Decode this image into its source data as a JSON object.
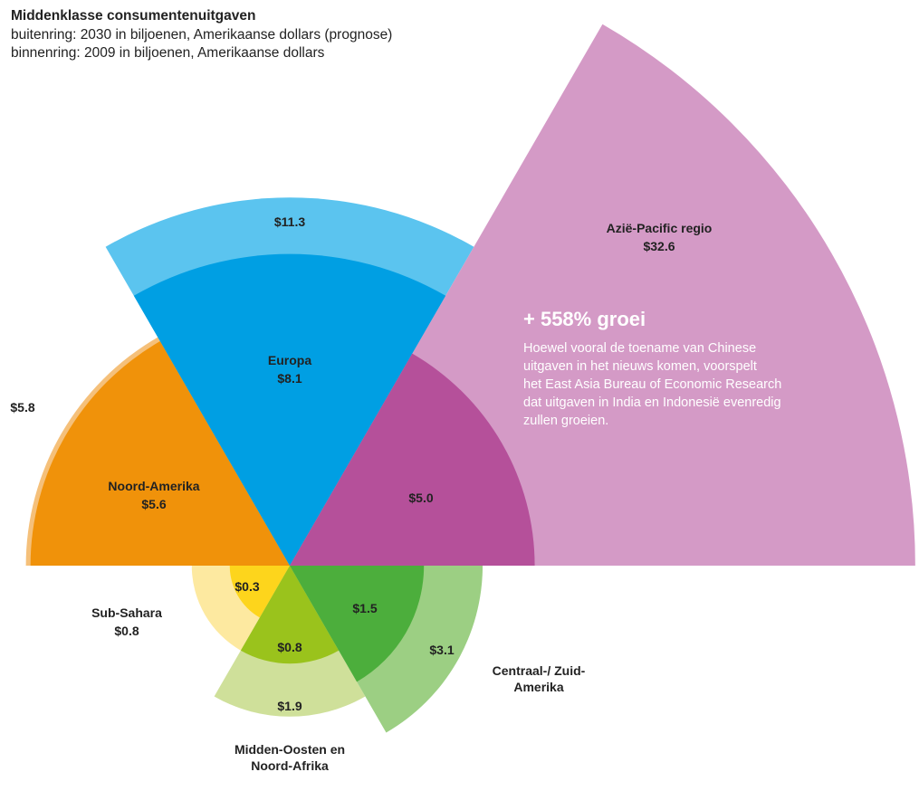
{
  "chart_data": {
    "type": "polar-area",
    "title": "Middenklasse consumentenuitgaven",
    "subtitle": [
      "buitenring: 2030 in biljoenen, Amerikaanse dollars (prognose)",
      "binnenring: 2009 in biljoenen, Amerikaanse dollars"
    ],
    "categories": [
      "Noord-Amerika",
      "Europa",
      "Azië-Pacific regio",
      "Sub-Sahara",
      "Midden-Oosten en Noord-Afrika",
      "Centraal-/ Zuid-Amerika"
    ],
    "series": [
      {
        "values": [
          5.8,
          11.3,
          32.6,
          0.8,
          1.9,
          3.1
        ],
        "value_labels": [
          "$5.8",
          "$11.3",
          "$32.6",
          "$0.8",
          "$1.9",
          "$3.1"
        ],
        "colors": [
          "#f5c07a",
          "#5bc4ef",
          "#d49ac6",
          "#fde9a0",
          "#cfe09a",
          "#9ccf83"
        ]
      },
      {
        "values": [
          5.6,
          8.1,
          5.0,
          0.3,
          0.8,
          1.5
        ],
        "value_labels": [
          "$5.6",
          "$8.1",
          "$5.0",
          "$0.3",
          "$0.8",
          "$1.5"
        ],
        "colors": [
          "#f0920a",
          "#009fe3",
          "#b5509a",
          "#fdd51c",
          "#9ac31c",
          "#4cae3c"
        ]
      }
    ],
    "annotation": {
      "title": "+ 558% groei",
      "lines": [
        "Hoewel vooral de toename van Chinese",
        "uitgaven in het nieuws komen, voorspelt",
        "het East Asia Bureau of Economic Research",
        "dat uitgaven in India en Indonesië evenredig",
        "zullen groeien."
      ]
    }
  }
}
